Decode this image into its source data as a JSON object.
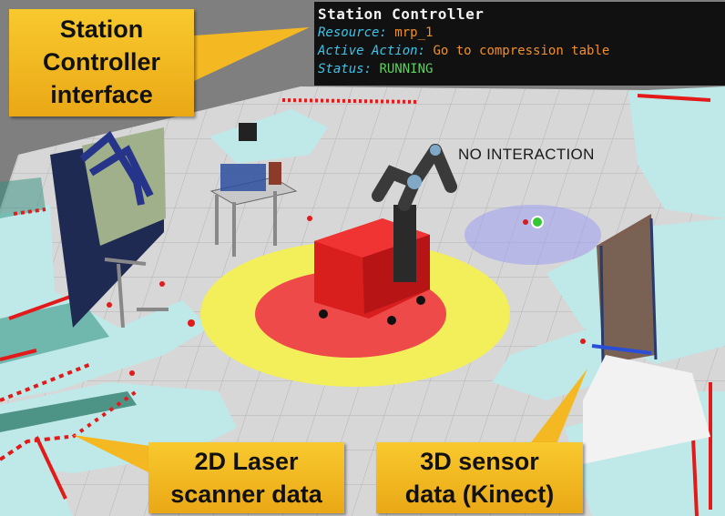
{
  "hud": {
    "title": "Station Controller",
    "resource_label": "Resource:",
    "resource_value": "mrp_1",
    "action_label": "Active Action:",
    "action_value": "Go to compression table",
    "status_label": "Status:",
    "status_value": "RUNNING"
  },
  "scene_label": "NO INTERACTION",
  "callouts": {
    "station_controller": [
      "Station",
      "Controller",
      "interface"
    ],
    "laser": [
      "2D Laser",
      "scanner data"
    ],
    "sensor": [
      "3D sensor",
      "data (Kinect)"
    ]
  },
  "colors": {
    "callout_fill": "#f4b922",
    "hud_bg": "#111111",
    "hud_label": "#3fc3e8",
    "hud_value": "#f0902a",
    "hud_status": "#5ed05e",
    "safety_zone_outer": "#f2ef5a",
    "safety_zone_inner": "#ef4a4a",
    "robot_body": "#d91e1e",
    "laser_points": "#e21a1a",
    "map_free": "#bfe9e8"
  }
}
